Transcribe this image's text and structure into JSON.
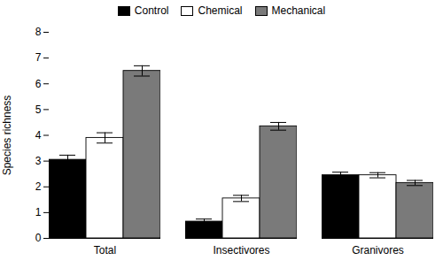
{
  "chart_data": {
    "type": "bar",
    "categories": [
      "Total",
      "Insectivores",
      "Granivores"
    ],
    "series": [
      {
        "name": "Control",
        "color": "#000000",
        "values": [
          3.05,
          0.65,
          2.45
        ],
        "errors": [
          0.18,
          0.1,
          0.12
        ]
      },
      {
        "name": "Chemical",
        "color": "#ffffff",
        "values": [
          3.9,
          1.55,
          2.45
        ],
        "errors": [
          0.2,
          0.12,
          0.1
        ]
      },
      {
        "name": "Mechanical",
        "color": "#7a7a7a",
        "values": [
          6.5,
          4.35,
          2.15
        ],
        "errors": [
          0.2,
          0.15,
          0.1
        ]
      }
    ],
    "ylabel": "Species richness",
    "ylim": [
      0,
      8
    ],
    "yticks": [
      0,
      1,
      2,
      3,
      4,
      5,
      6,
      7,
      8
    ],
    "legend": "top",
    "grid": false
  }
}
